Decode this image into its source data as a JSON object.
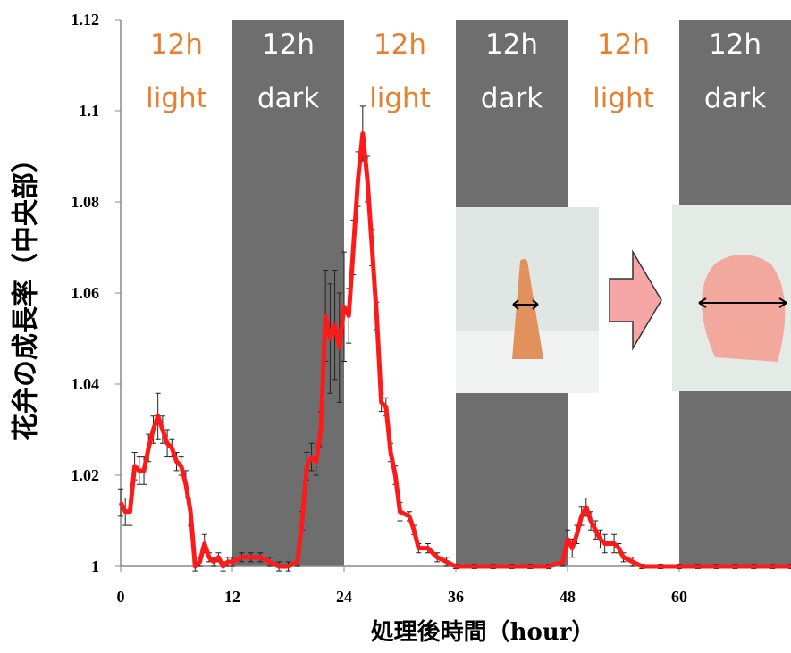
{
  "chart_data": {
    "type": "line",
    "x_label": "処理後時間（hour）",
    "y_label": "花弁の成長率（中央部）",
    "x": [
      0,
      0.5,
      1,
      1.5,
      2,
      2.5,
      3,
      3.5,
      4,
      4.5,
      5,
      5.5,
      6,
      6.5,
      7,
      7.5,
      8,
      8.5,
      9,
      9.5,
      10,
      10.5,
      11,
      11.5,
      12,
      13,
      14,
      15,
      16,
      17,
      18,
      19,
      19.5,
      20,
      20.5,
      21,
      21.5,
      22,
      22.5,
      23,
      23.5,
      24,
      24.5,
      25,
      25.5,
      26,
      26.5,
      27,
      27.5,
      28,
      28.5,
      29,
      29.5,
      30,
      31,
      31.5,
      32,
      33,
      34,
      35,
      36,
      38,
      40,
      42,
      44,
      46,
      47.5,
      48,
      48.5,
      49,
      49.5,
      50,
      50.5,
      51,
      51.5,
      52,
      53,
      53.5,
      54,
      55,
      56,
      58,
      60,
      62,
      64,
      66,
      68,
      70,
      72
    ],
    "values": [
      1.014,
      1.012,
      1.012,
      1.022,
      1.021,
      1.021,
      1.026,
      1.03,
      1.033,
      1.03,
      1.027,
      1.026,
      1.023,
      1.022,
      1.018,
      1.012,
      1.0,
      1.001,
      1.005,
      1.002,
      1.001,
      1.002,
      1.0,
      1.001,
      1.001,
      1.002,
      1.002,
      1.002,
      1.001,
      1.0,
      1.0,
      1.001,
      1.01,
      1.022,
      1.024,
      1.023,
      1.03,
      1.055,
      1.05,
      1.053,
      1.048,
      1.057,
      1.055,
      1.07,
      1.085,
      1.095,
      1.085,
      1.07,
      1.055,
      1.036,
      1.035,
      1.025,
      1.02,
      1.012,
      1.011,
      1.008,
      1.004,
      1.004,
      1.002,
      1.001,
      1.0,
      1.0,
      1.0,
      1.0,
      1.0,
      1.0,
      1.001,
      1.006,
      1.004,
      1.007,
      1.011,
      1.013,
      1.01,
      1.008,
      1.006,
      1.005,
      1.005,
      1.004,
      1.002,
      1.001,
      1.0,
      1.0,
      1.0,
      1.0,
      1.0,
      1.0,
      1.0,
      1.0,
      1.0
    ],
    "errors": [
      0.003,
      0.003,
      0.003,
      0.003,
      0.003,
      0.003,
      0.003,
      0.003,
      0.005,
      0.003,
      0.003,
      0.002,
      0.002,
      0.002,
      0.003,
      0.003,
      0.001,
      0.001,
      0.002,
      0.001,
      0.001,
      0.001,
      0.001,
      0.001,
      0.001,
      0.001,
      0.001,
      0.001,
      0.001,
      0.001,
      0.001,
      0.001,
      0.002,
      0.003,
      0.003,
      0.003,
      0.004,
      0.01,
      0.012,
      0.012,
      0.012,
      0.012,
      0.006,
      0.006,
      0.006,
      0.006,
      0.005,
      0.004,
      0.003,
      0.002,
      0.002,
      0.002,
      0.002,
      0.002,
      0.001,
      0.001,
      0.001,
      0.001,
      0.001,
      0.001,
      0.0005,
      0.0005,
      0.0005,
      0.0005,
      0.0005,
      0.0005,
      0.001,
      0.002,
      0.002,
      0.002,
      0.002,
      0.002,
      0.002,
      0.002,
      0.002,
      0.002,
      0.002,
      0.001,
      0.001,
      0.001,
      0.0005,
      0.0005,
      0.0005,
      0.0005,
      0.0005,
      0.0005,
      0.0005,
      0.0005,
      0.0005
    ],
    "color": "#ff1a1a",
    "xlim": [
      0,
      72
    ],
    "ylim": [
      1,
      1.12
    ],
    "xticks": [
      0,
      12,
      24,
      36,
      48,
      60
    ],
    "yticks": [
      1,
      1.02,
      1.04,
      1.06,
      1.08,
      1.1,
      1.12
    ],
    "periods": [
      {
        "start": 0,
        "end": 12,
        "lines": [
          "12h",
          "light"
        ],
        "color": "#e8812f"
      },
      {
        "start": 12,
        "end": 24,
        "lines": [
          "12h",
          "dark"
        ],
        "color": "#ffffff",
        "shade": "#6e6e6e"
      },
      {
        "start": 24,
        "end": 36,
        "lines": [
          "12h",
          "light"
        ],
        "color": "#e8812f"
      },
      {
        "start": 36,
        "end": 48,
        "lines": [
          "12h",
          "dark"
        ],
        "color": "#ffffff",
        "shade": "#6e6e6e"
      },
      {
        "start": 48,
        "end": 60,
        "lines": [
          "12h",
          "light"
        ],
        "color": "#e8812f"
      },
      {
        "start": 60,
        "end": 72,
        "lines": [
          "12h",
          "dark"
        ],
        "color": "#ffffff",
        "shade": "#6e6e6e"
      }
    ]
  }
}
